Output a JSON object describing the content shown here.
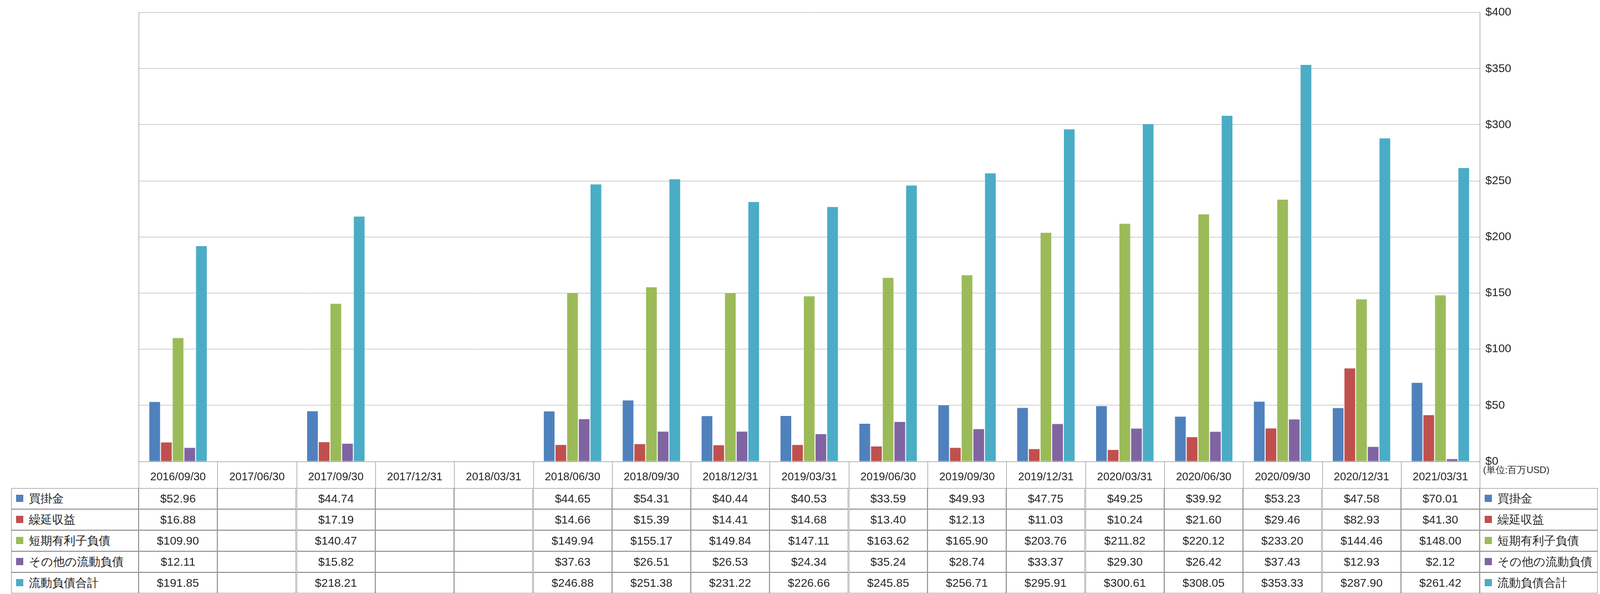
{
  "chart_data": {
    "type": "bar",
    "categories": [
      "2016/09/30",
      "2017/06/30",
      "2017/09/30",
      "2017/12/31",
      "2018/03/31",
      "2018/06/30",
      "2018/09/30",
      "2018/12/31",
      "2019/03/31",
      "2019/06/30",
      "2019/09/30",
      "2019/12/31",
      "2020/03/31",
      "2020/06/30",
      "2020/09/30",
      "2020/12/31",
      "2021/03/31"
    ],
    "series": [
      {
        "name": "買掛金",
        "color": "#4f81bd",
        "values": [
          52.96,
          null,
          44.74,
          null,
          null,
          44.65,
          54.31,
          40.44,
          40.53,
          33.59,
          49.93,
          47.75,
          49.25,
          39.92,
          53.23,
          47.58,
          70.01
        ],
        "value_labels": [
          "$52.96",
          null,
          "$44.74",
          null,
          null,
          "$44.65",
          "$54.31",
          "$40.44",
          "$40.53",
          "$33.59",
          "$49.93",
          "$47.75",
          "$49.25",
          "$39.92",
          "$53.23",
          "$47.58",
          "$70.01"
        ]
      },
      {
        "name": "繰延収益",
        "color": "#c0504d",
        "values": [
          16.88,
          null,
          17.19,
          null,
          null,
          14.66,
          15.39,
          14.41,
          14.68,
          13.4,
          12.13,
          11.03,
          10.24,
          21.6,
          29.46,
          82.93,
          41.3
        ],
        "value_labels": [
          "$16.88",
          null,
          "$17.19",
          null,
          null,
          "$14.66",
          "$15.39",
          "$14.41",
          "$14.68",
          "$13.40",
          "$12.13",
          "$11.03",
          "$10.24",
          "$21.60",
          "$29.46",
          "$82.93",
          "$41.30"
        ]
      },
      {
        "name": "短期有利子負債",
        "color": "#9bbb59",
        "values": [
          109.9,
          null,
          140.47,
          null,
          null,
          149.94,
          155.17,
          149.84,
          147.11,
          163.62,
          165.9,
          203.76,
          211.82,
          220.12,
          233.2,
          144.46,
          148.0
        ],
        "value_labels": [
          "$109.90",
          null,
          "$140.47",
          null,
          null,
          "$149.94",
          "$155.17",
          "$149.84",
          "$147.11",
          "$163.62",
          "$165.90",
          "$203.76",
          "$211.82",
          "$220.12",
          "$233.20",
          "$144.46",
          "$148.00"
        ]
      },
      {
        "name": "その他の流動負債",
        "color": "#8064a2",
        "values": [
          12.11,
          null,
          15.82,
          null,
          null,
          37.63,
          26.51,
          26.53,
          24.34,
          35.24,
          28.74,
          33.37,
          29.3,
          26.42,
          37.43,
          12.93,
          2.12
        ],
        "value_labels": [
          "$12.11",
          null,
          "$15.82",
          null,
          null,
          "$37.63",
          "$26.51",
          "$26.53",
          "$24.34",
          "$35.24",
          "$28.74",
          "$33.37",
          "$29.30",
          "$26.42",
          "$37.43",
          "$12.93",
          "$2.12"
        ]
      },
      {
        "name": "流動負債合計",
        "color": "#4bacc6",
        "values": [
          191.85,
          null,
          218.21,
          null,
          null,
          246.88,
          251.38,
          231.22,
          226.66,
          245.85,
          256.71,
          295.91,
          300.61,
          308.05,
          353.33,
          287.9,
          261.42
        ],
        "value_labels": [
          "$191.85",
          null,
          "$218.21",
          null,
          null,
          "$246.88",
          "$251.38",
          "$231.22",
          "$226.66",
          "$245.85",
          "$256.71",
          "$295.91",
          "$300.61",
          "$308.05",
          "$353.33",
          "$287.90",
          "$261.42"
        ]
      }
    ],
    "ylim": [
      0,
      400
    ],
    "yticks": [
      {
        "value": 0,
        "label": "$0"
      },
      {
        "value": 50,
        "label": "$50"
      },
      {
        "value": 100,
        "label": "$100"
      },
      {
        "value": 150,
        "label": "$150"
      },
      {
        "value": 200,
        "label": "$200"
      },
      {
        "value": 250,
        "label": "$250"
      },
      {
        "value": 300,
        "label": "$300"
      },
      {
        "value": 350,
        "label": "$350"
      },
      {
        "value": 400,
        "label": "$400"
      }
    ],
    "y_label": "(単位:百万USD)",
    "grid": true
  }
}
